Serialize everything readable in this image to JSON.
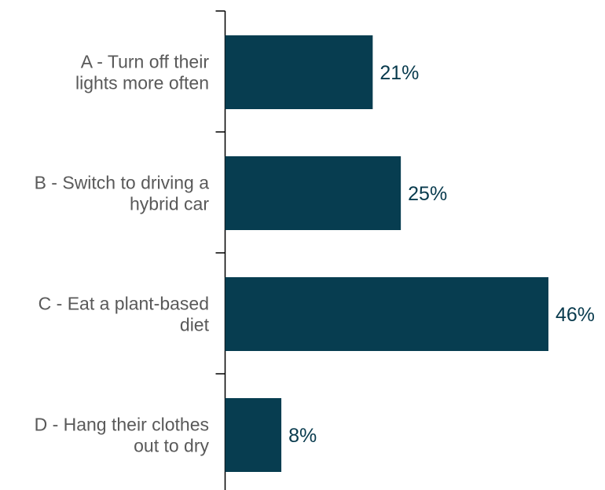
{
  "colors": {
    "bar": "#073d50",
    "axis": "#000000",
    "category_text": "#595959",
    "value_text": "#083a4d"
  },
  "chart_data": {
    "type": "bar",
    "orientation": "horizontal",
    "title": "",
    "xlabel": "",
    "ylabel": "",
    "categories": [
      [
        "A - Turn off their",
        "lights more often"
      ],
      [
        "B - Switch to driving a",
        "hybrid car"
      ],
      [
        "C - Eat a plant-based",
        "diet"
      ],
      [
        "D - Hang their clothes",
        "out to dry"
      ]
    ],
    "values": [
      21,
      25,
      46,
      8
    ],
    "value_labels": [
      "21%",
      "25%",
      "46%",
      "8%"
    ],
    "unit": "%",
    "xlim": [
      0,
      46
    ],
    "grid": false,
    "legend": "none"
  }
}
